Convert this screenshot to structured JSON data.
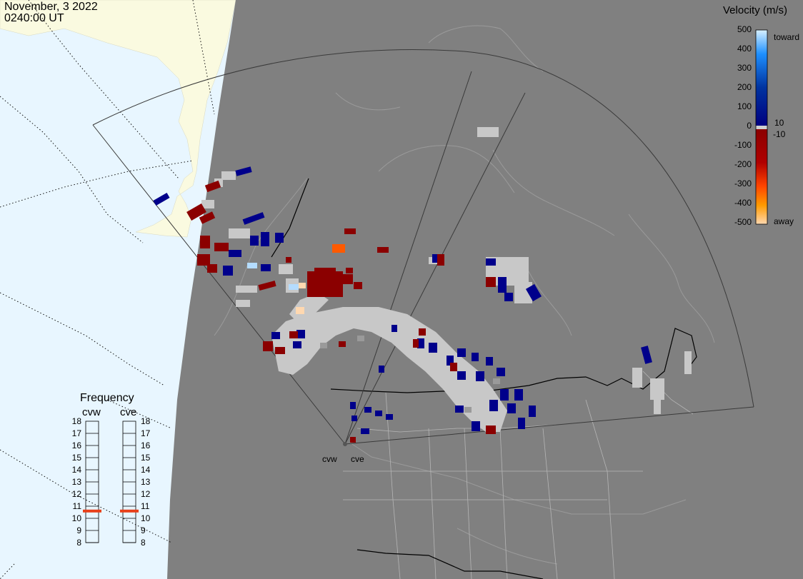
{
  "header": {
    "date": "November, 3 2022",
    "time": "0240:00 UT"
  },
  "legend": {
    "title": "Velocity (m/s)",
    "ticks": [
      "500",
      "400",
      "300",
      "200",
      "100",
      "0",
      "-100",
      "-200",
      "-300",
      "-400",
      "-500"
    ],
    "inner_pos": "10",
    "inner_neg": "-10",
    "toward_label": "toward",
    "away_label": "away"
  },
  "frequency": {
    "title": "Frequency",
    "radar_labels": [
      "cvw",
      "cve"
    ],
    "scale": [
      "18",
      "17",
      "16",
      "15",
      "14",
      "13",
      "12",
      "11",
      "10",
      "9",
      "8"
    ],
    "cvw_mhz": 10.6,
    "cve_mhz": 10.6
  },
  "radars": [
    "cvw",
    "cve"
  ],
  "colors": {
    "ocean": "#e8f6ff",
    "land_alaska": "#fafae0",
    "night_mask": "#808080",
    "ground_scatter": "#c8c8c8",
    "toward_dark": "#00008b",
    "away_dark": "#8b0000",
    "away_orange": "#ff5a00",
    "freq_marker": "#e8401a"
  }
}
